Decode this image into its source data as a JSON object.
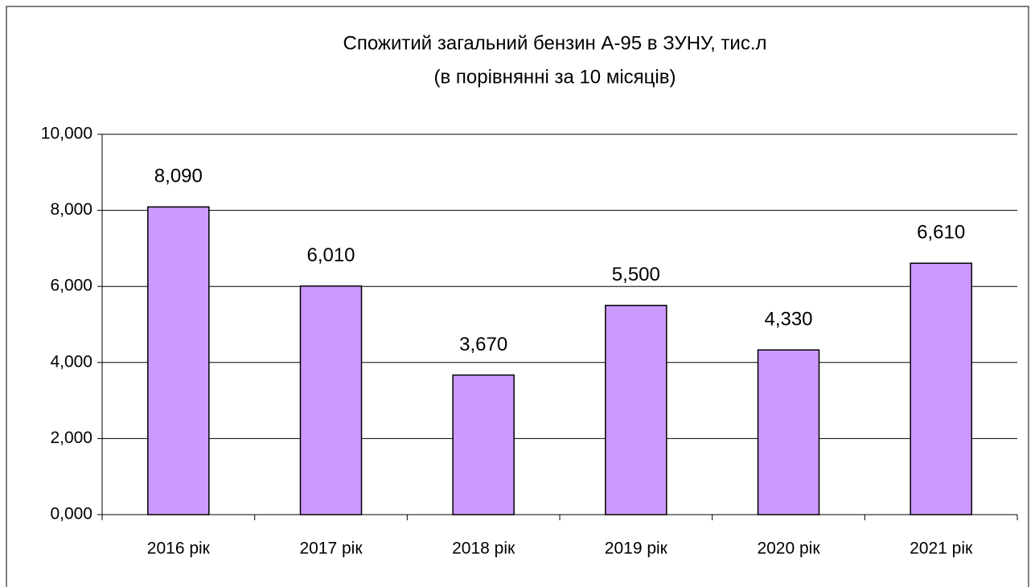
{
  "chart_data": {
    "type": "bar",
    "title": "Спожитий загальний бензин А-95 в ЗУНУ, тис.л",
    "subtitle": "(в порівнянні за 10 місяців)",
    "categories": [
      "2016 рік",
      "2017 рік",
      "2018 рік",
      "2019 рік",
      "2020 рік",
      "2021 рік"
    ],
    "values": [
      8.09,
      6.01,
      3.67,
      5.5,
      4.33,
      6.61
    ],
    "value_labels": [
      "8,090",
      "6,010",
      "3,670",
      "5,500",
      "4,330",
      "6,610"
    ],
    "color": "#cc99ff",
    "ylim": [
      0,
      10
    ],
    "yticks": [
      {
        "value": 0,
        "label": "0,000"
      },
      {
        "value": 2,
        "label": "2,000"
      },
      {
        "value": 4,
        "label": "4,000"
      },
      {
        "value": 6,
        "label": "6,000"
      },
      {
        "value": 8,
        "label": "8,000"
      },
      {
        "value": 10,
        "label": "10,000"
      }
    ],
    "grid": true
  }
}
